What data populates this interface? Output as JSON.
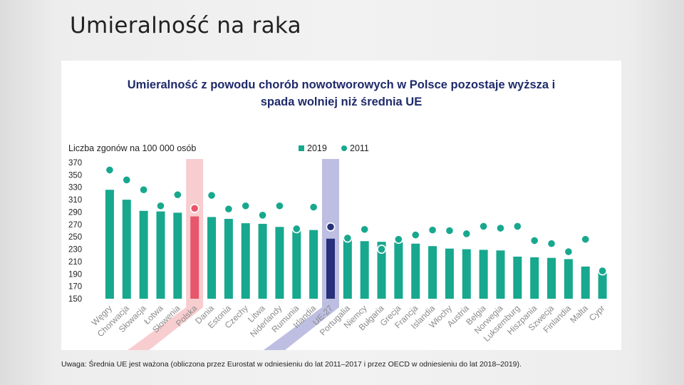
{
  "slide_title": "Umieralność na raka",
  "note": "Uwaga: Średnia UE jest ważona (obliczona przez Eurostat w odniesieniu do lat 2011–2017 i przez OECD w odniesieniu do lat 2018–2019).",
  "chart_data": {
    "type": "bar",
    "title_line1": "Umieralność z powodu chorób nowotworowych w Polsce pozostaje wyższa i",
    "title_line2": "spada wolniej niż średnia UE",
    "ylabel": "Liczba zgonów na 100 000 osób",
    "ylim": [
      150,
      370
    ],
    "yticks": [
      150,
      170,
      190,
      210,
      230,
      250,
      270,
      290,
      310,
      330,
      350,
      370
    ],
    "legend": {
      "bar": "2019",
      "dot": "2011",
      "placement": "top"
    },
    "colors": {
      "bar": "#17a88e",
      "dot": "#17a88e",
      "poland": "#e8566c",
      "poland_band": "#f7c4c8",
      "eu": "#27307a",
      "eu_band": "#b1b3dc"
    },
    "highlight": {
      "poland": "Polska",
      "eu": "UE-27"
    },
    "categories": [
      "Węgry",
      "Chorwacja",
      "Słowacja",
      "Łotwa",
      "Słowenia",
      "Polska",
      "Dania",
      "Estonia",
      "Czechy",
      "Litwa",
      "Niderlandy",
      "Rumunia",
      "Irlandia",
      "UE-27",
      "Portugalia",
      "Niemcy",
      "Bułgaria",
      "Grecja",
      "Francja",
      "Islandia",
      "Włochy",
      "Austria",
      "Belgia",
      "Norwegia",
      "Luksemburg",
      "Hiszpania",
      "Szwecja",
      "Finlandia",
      "Malta",
      "Cypr"
    ],
    "series": [
      {
        "name": "2019",
        "values": [
          326,
          310,
          292,
          291,
          289,
          283,
          282,
          279,
          272,
          271,
          266,
          263,
          261,
          247,
          245,
          243,
          242,
          241,
          239,
          235,
          231,
          230,
          229,
          228,
          218,
          217,
          216,
          214,
          202,
          193
        ]
      },
      {
        "name": "2011",
        "values": [
          358,
          342,
          326,
          300,
          318,
          296,
          317,
          295,
          300,
          285,
          300,
          263,
          298,
          266,
          248,
          262,
          230,
          246,
          253,
          261,
          260,
          255,
          267,
          264,
          267,
          244,
          239,
          226,
          246,
          195
        ]
      }
    ]
  }
}
